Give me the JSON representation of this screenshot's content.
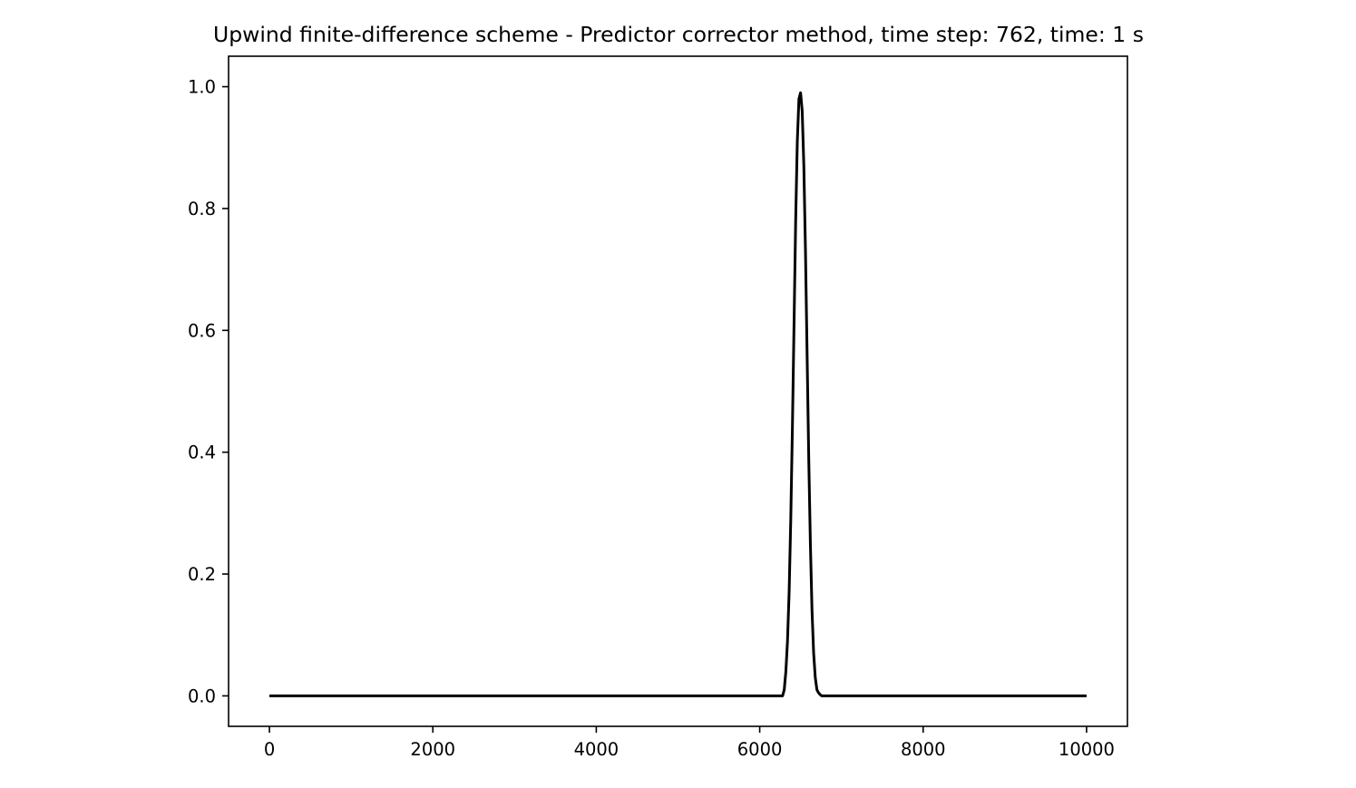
{
  "chart_data": {
    "type": "line",
    "title": "Upwind finite-difference scheme - Predictor corrector method, time step: 762, time: 1 s",
    "xlabel": "",
    "ylabel": "",
    "xlim": [
      -500,
      10500
    ],
    "ylim": [
      -0.05,
      1.05
    ],
    "grid": false,
    "x_ticks": [
      0,
      2000,
      4000,
      6000,
      8000,
      10000
    ],
    "x_tick_labels": [
      "0",
      "2000",
      "4000",
      "6000",
      "8000",
      "10000"
    ],
    "y_ticks": [
      0.0,
      0.2,
      0.4,
      0.6,
      0.8,
      1.0
    ],
    "y_tick_labels": [
      "0.0",
      "0.2",
      "0.4",
      "0.6",
      "0.8",
      "1.0"
    ],
    "series": [
      {
        "color": "#000000",
        "x": [
          0,
          1000,
          2000,
          3000,
          4000,
          5000,
          6000,
          6200,
          6280,
          6300,
          6320,
          6340,
          6360,
          6380,
          6400,
          6420,
          6440,
          6460,
          6480,
          6500,
          6520,
          6540,
          6560,
          6580,
          6600,
          6620,
          6640,
          6660,
          6680,
          6700,
          6720,
          6740,
          6760,
          6780,
          6800,
          7000,
          8000,
          9000,
          10000
        ],
        "y": [
          0.0,
          0.0,
          0.0,
          0.0,
          0.0,
          0.0,
          0.0,
          0.0,
          0.0,
          0.01,
          0.04,
          0.09,
          0.17,
          0.29,
          0.44,
          0.61,
          0.78,
          0.91,
          0.98,
          0.99,
          0.96,
          0.87,
          0.73,
          0.56,
          0.39,
          0.25,
          0.14,
          0.07,
          0.03,
          0.01,
          0.005,
          0.002,
          0.0,
          0.0,
          0.0,
          0.0,
          0.0,
          0.0,
          0.0
        ]
      }
    ]
  }
}
